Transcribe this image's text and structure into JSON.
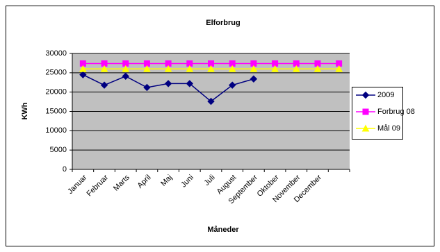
{
  "chart_data": {
    "type": "line",
    "title": "Elforbrug",
    "x_label": "Måneder",
    "y_label": "KWh",
    "categories": [
      "Januar",
      "Februar",
      "Marts",
      "April",
      "Maj",
      "Juni",
      "Juli",
      "August",
      "September",
      "Oktober",
      "November",
      "December",
      null
    ],
    "series": [
      {
        "name": "2009",
        "color": "#000080",
        "marker": "diamond",
        "values": [
          24500,
          21800,
          24100,
          21200,
          22200,
          22200,
          17600,
          21800,
          23400,
          null,
          null,
          null,
          null
        ]
      },
      {
        "name": "Forbrug 08",
        "color": "#ff00ff",
        "marker": "square",
        "values": [
          27400,
          27400,
          27400,
          27400,
          27400,
          27400,
          27400,
          27400,
          27400,
          27400,
          27400,
          27400,
          27400
        ]
      },
      {
        "name": "Mål 09",
        "color": "#ffff00",
        "marker": "triangle",
        "values": [
          26000,
          26000,
          26000,
          26000,
          26000,
          26000,
          26000,
          26000,
          26000,
          26000,
          26000,
          26000,
          26000
        ]
      }
    ],
    "ylim": [
      0,
      30000
    ],
    "yticks": [
      0,
      5000,
      10000,
      15000,
      20000,
      25000,
      30000
    ],
    "grid": true,
    "legend": "right"
  }
}
